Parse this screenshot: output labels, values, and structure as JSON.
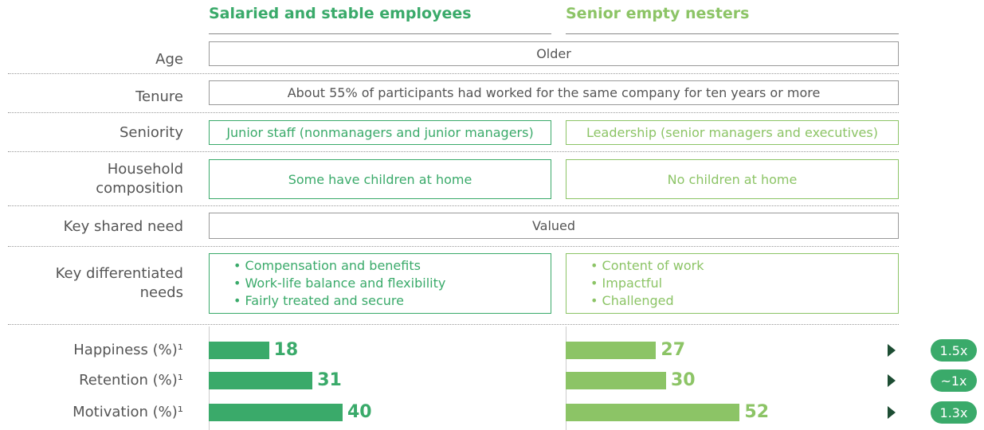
{
  "columns": [
    "Salaried and stable employees",
    "Senior empty nesters"
  ],
  "rows": [
    {
      "label": "Age",
      "shared": "Older"
    },
    {
      "label": "Tenure",
      "shared": "About 55% of participants had worked for the same company for ten years or more"
    },
    {
      "label": "Seniority",
      "cells": [
        "Junior staff (nonmanagers and junior managers)",
        "Leadership (senior managers and executives)"
      ]
    },
    {
      "label": "Household composition",
      "cells": [
        "Some have children at home",
        "No children at home"
      ]
    },
    {
      "label": "Key shared need",
      "shared": "Valued"
    },
    {
      "label": "Key differentiated needs",
      "lists": [
        [
          "Compensation and benefits",
          "Work-life balance and flexibility",
          "Fairly treated and secure"
        ],
        [
          "Content of work",
          "Impactful",
          "Challenged"
        ]
      ]
    }
  ],
  "metrics": [
    {
      "label": "Happiness (%)¹",
      "values": [
        18,
        27
      ],
      "ratio": "1.5x"
    },
    {
      "label": "Retention (%)¹",
      "values": [
        31,
        30
      ],
      "ratio": "~1x"
    },
    {
      "label": "Motivation (%)¹",
      "values": [
        40,
        52
      ],
      "ratio": "1.3x"
    }
  ]
}
